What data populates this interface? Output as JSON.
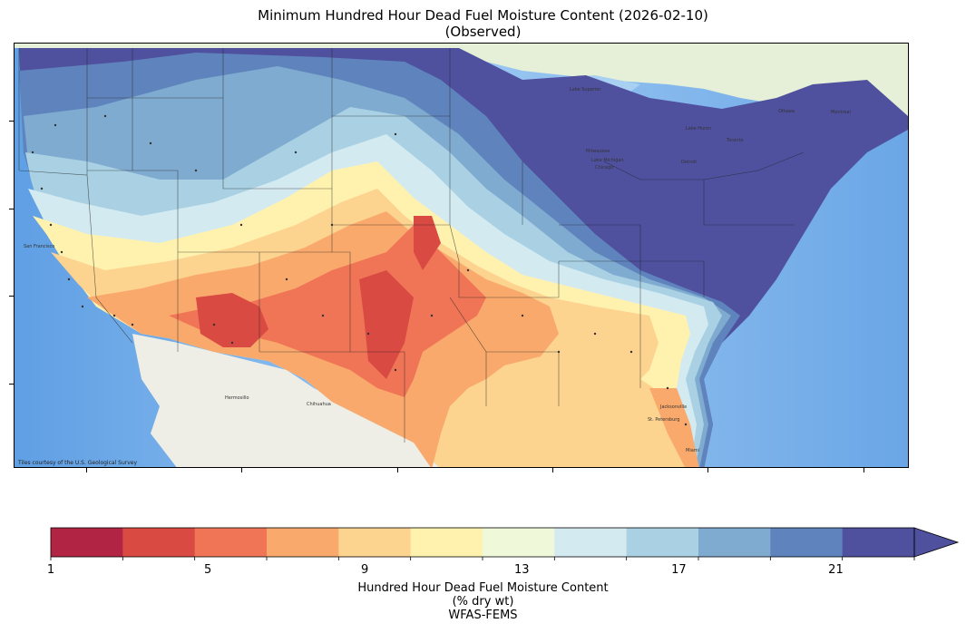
{
  "title": {
    "line1": "Minimum Hundred Hour Dead Fuel Moisture Content (2026-02-10)",
    "line2": "(Observed)"
  },
  "map": {
    "credit": "Tiles courtesy of the U.S. Geological Survey",
    "basemap_ocean_color": "#6aa6e6",
    "basemap_land_color": "#f0efe6",
    "place_labels": [
      "San Francisco",
      "Hermosillo",
      "Chihuahua",
      "Jacksonville",
      "St. Petersburg",
      "Miami",
      "Lake Superior",
      "Lake Huron",
      "Lake Michigan",
      "Ottawa",
      "Montreal",
      "Toronto",
      "Milwaukee",
      "Chicago",
      "Detroit"
    ]
  },
  "colorbar": {
    "label_line1": "Hundred Hour Dead Fuel Moisture Content",
    "label_line2": "(% dry wt)",
    "label_line3": "WFAS-FEMS",
    "tick_labels": [
      "1",
      "5",
      "9",
      "13",
      "17",
      "21"
    ],
    "tick_values": [
      1,
      5,
      9,
      13,
      17,
      21
    ],
    "range": [
      1,
      23
    ],
    "extend": "max",
    "colors": [
      "#b22444",
      "#d94a43",
      "#ef7556",
      "#f9a96b",
      "#fdd390",
      "#fff2ae",
      "#f0f8da",
      "#d3eaf1",
      "#a9d1e3",
      "#80abd0",
      "#5f84bd",
      "#4f519f"
    ]
  }
}
